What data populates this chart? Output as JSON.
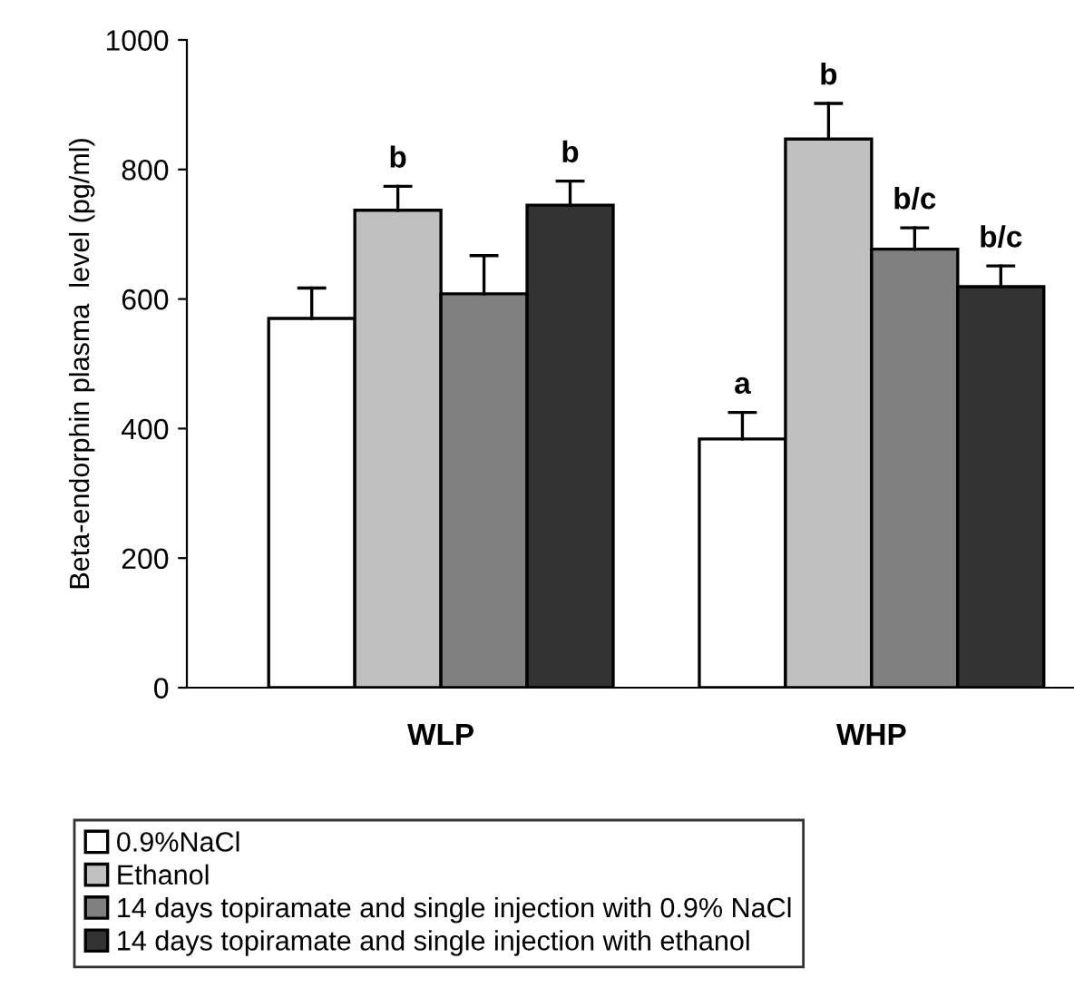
{
  "chart_data": {
    "type": "bar",
    "ylabel": "Beta-endorphin plasma  level (pg/ml)",
    "categories": [
      "WLP",
      "WHP"
    ],
    "series": [
      {
        "name": "0.9%NaCl",
        "color": "#ffffff",
        "values": [
          570,
          384
        ],
        "errors": [
          [
            570,
            617
          ],
          [
            384,
            425
          ]
        ]
      },
      {
        "name": "Ethanol",
        "color": "#c0c0c0",
        "values": [
          737,
          847
        ],
        "errors": [
          [
            737,
            774
          ],
          [
            847,
            902
          ]
        ]
      },
      {
        "name": "14 days topiramate and single injection with 0.9% NaCl",
        "color": "#808080",
        "values": [
          608,
          677
        ],
        "errors": [
          [
            608,
            667
          ],
          [
            677,
            710
          ]
        ]
      },
      {
        "name": "14 days topiramate and single injection with ethanol",
        "color": "#333333",
        "values": [
          745,
          619
        ],
        "errors": [
          [
            745,
            782
          ],
          [
            619,
            651
          ]
        ]
      }
    ],
    "annotations": [
      "b",
      "b",
      "a",
      "b",
      "b/c",
      "b/c"
    ],
    "ylim": [
      0,
      1000
    ],
    "yticks": [
      0,
      200,
      400,
      600,
      800,
      1000
    ],
    "grid": false,
    "legend": "bottom"
  }
}
